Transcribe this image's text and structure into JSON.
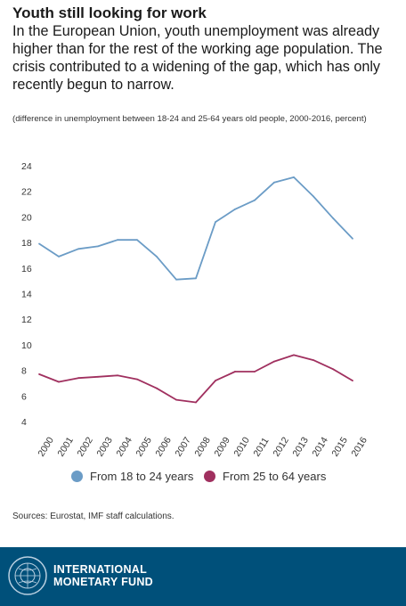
{
  "title": "Youth still looking for work",
  "subtitle": "In the European Union, youth unemployment was already higher than for the rest of the working age population. The crisis contributed to a widening of the gap, which has only recently begun to narrow.",
  "note": "(difference in unemployment between 18-24 and 25-64 years old people, 2000-2016, percent)",
  "sources": "Sources: Eurostat, IMF staff calculations.",
  "footer": {
    "org_line1": "INTERNATIONAL",
    "org_line2": "MONETARY FUND",
    "seal_text": "INTERNATIONAL MONETARY FUND"
  },
  "colors": {
    "youth": "#6b9cc6",
    "adult": "#a0305f",
    "footer_bg": "#00507a"
  },
  "chart_data": {
    "type": "line",
    "categories": [
      "2000",
      "2001",
      "2002",
      "2003",
      "2004",
      "2005",
      "2006",
      "2007",
      "2008",
      "2009",
      "2010",
      "2011",
      "2012",
      "2013",
      "2014",
      "2015",
      "2016"
    ],
    "ylim": [
      4,
      24
    ],
    "yticks": [
      4,
      6,
      8,
      10,
      12,
      14,
      16,
      18,
      20,
      22,
      24
    ],
    "grid": false,
    "legend_position": "bottom",
    "series": [
      {
        "name": "From 18 to 24 years",
        "color": "#6b9cc6",
        "values": [
          17.9,
          16.9,
          17.5,
          17.7,
          18.2,
          18.2,
          16.9,
          15.1,
          15.2,
          19.6,
          20.6,
          21.3,
          22.7,
          23.1,
          21.6,
          19.9,
          18.3
        ]
      },
      {
        "name": "From 25 to 64 years",
        "color": "#a0305f",
        "values": [
          7.7,
          7.1,
          7.4,
          7.5,
          7.6,
          7.3,
          6.6,
          5.7,
          5.5,
          7.2,
          7.9,
          7.9,
          8.7,
          9.2,
          8.8,
          8.1,
          7.2
        ]
      }
    ]
  }
}
